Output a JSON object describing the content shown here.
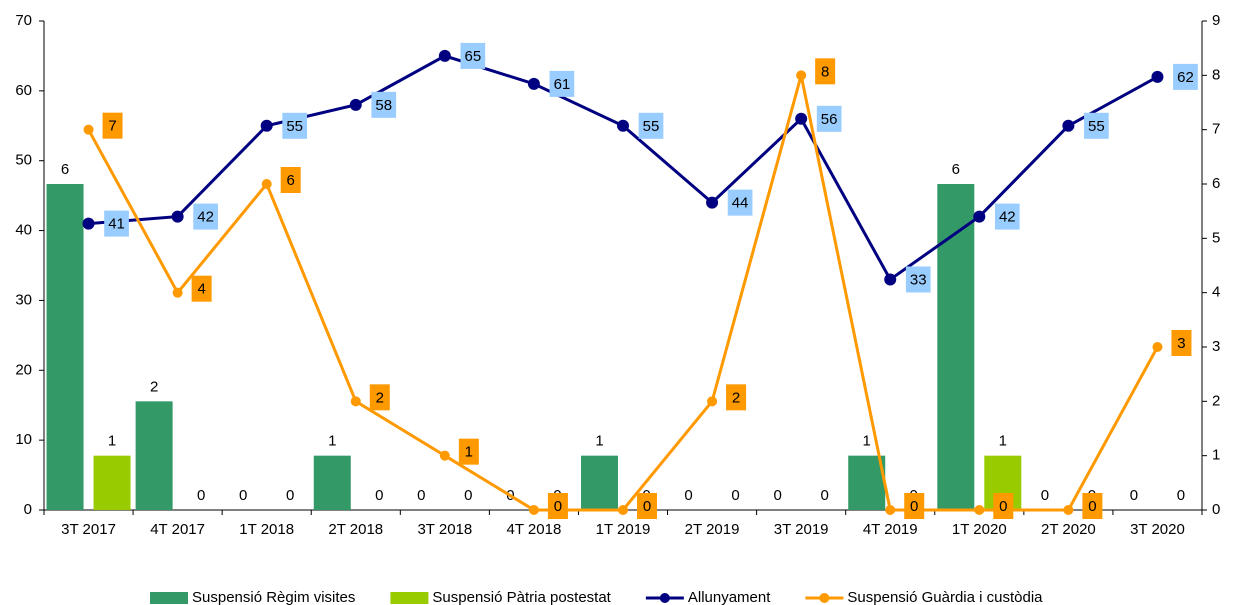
{
  "chart_data": {
    "type": "combo",
    "categories": [
      "3T 2017",
      "4T 2017",
      "1T 2018",
      "2T 2018",
      "3T 2018",
      "4T 2018",
      "1T 2019",
      "2T 2019",
      "3T 2019",
      "4T 2019",
      "1T 2020",
      "2T 2020",
      "3T 2020"
    ],
    "series": [
      {
        "name": "Suspensió Règim visites",
        "type": "bar",
        "axis": "y2",
        "color": "#339966",
        "values": [
          6,
          2,
          0,
          1,
          0,
          0,
          1,
          0,
          0,
          1,
          6,
          0,
          0
        ]
      },
      {
        "name": "Suspensió Pàtria postestat",
        "type": "bar",
        "axis": "y2",
        "color": "#99cc00",
        "values": [
          1,
          0,
          0,
          0,
          0,
          0,
          0,
          0,
          0,
          0,
          1,
          0,
          0
        ]
      },
      {
        "name": "Allunyament",
        "type": "line",
        "axis": "y",
        "color": "#000080",
        "label_color": "#99ccff",
        "values": [
          41,
          42,
          55,
          58,
          65,
          61,
          55,
          44,
          56,
          33,
          42,
          55,
          62
        ]
      },
      {
        "name": "Suspensió Guàrdia i custòdia",
        "type": "line",
        "axis": "y2",
        "color": "#ff9900",
        "label_color": "#ff9900",
        "values": [
          7,
          4,
          6,
          2,
          1,
          0,
          0,
          2,
          8,
          0,
          0,
          0,
          3
        ]
      }
    ],
    "ylim": [
      0,
      70
    ],
    "yticks": [
      0,
      10,
      20,
      30,
      40,
      50,
      60,
      70
    ],
    "y2lim": [
      0,
      9
    ],
    "y2ticks": [
      0,
      1,
      2,
      3,
      4,
      5,
      6,
      7,
      8,
      9
    ],
    "legend": "bottom"
  }
}
